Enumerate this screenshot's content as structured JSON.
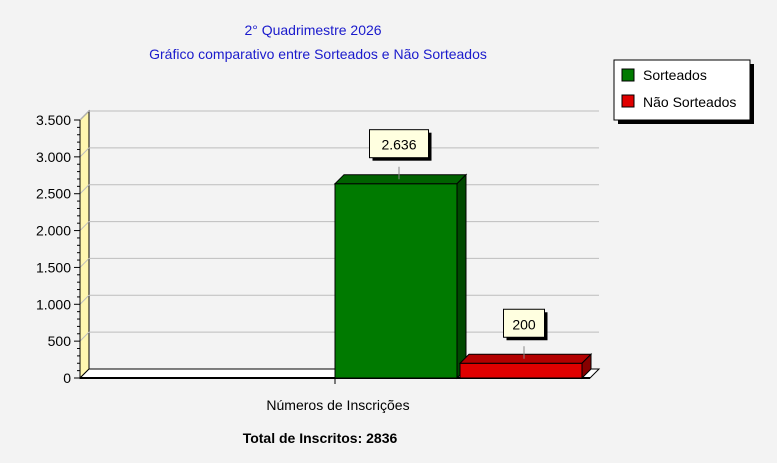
{
  "chart_data": {
    "type": "bar",
    "title": "2° Quadrimestre 2026",
    "subtitle": "Gráfico comparativo entre Sorteados e Não Sorteados",
    "categories": [
      "Números de Inscrições"
    ],
    "series": [
      {
        "name": "Sorteados",
        "values": [
          2636
        ],
        "color": "#007a00",
        "data_label": "2.636"
      },
      {
        "name": "Não Sorteados",
        "values": [
          200
        ],
        "color": "#e00000",
        "data_label": "200"
      }
    ],
    "xlabel": "Números de Inscrições",
    "ylabel": "",
    "ylim": [
      0,
      3500
    ],
    "yticks": [
      0,
      500,
      1000,
      1500,
      2000,
      2500,
      3000,
      3500
    ],
    "ytick_labels": [
      "0",
      "500",
      "1.000",
      "1.500",
      "2.000",
      "2.500",
      "3.000",
      "3.500"
    ],
    "grid": true,
    "legend_position": "top-right",
    "footer": "Total de Inscritos: 2836",
    "colors": {
      "background": "#f3f3f3",
      "title": "#1a1acc",
      "wall_left": "#fff7b0",
      "floor": "#ffffff",
      "label_box": "#ffffe0"
    }
  }
}
